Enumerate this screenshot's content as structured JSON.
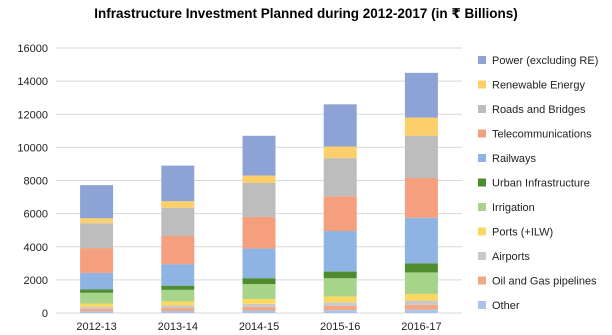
{
  "chart_data": {
    "type": "bar",
    "stacked": true,
    "title": "Infrastructure Investment Planned during 2012-2017 (in ₹ Billions)",
    "xlabel": "",
    "ylabel": "",
    "ylim": [
      0,
      16000
    ],
    "yticks": [
      0,
      2000,
      4000,
      6000,
      8000,
      10000,
      12000,
      14000,
      16000
    ],
    "grid": true,
    "legend_position": "right",
    "categories": [
      "2012-13",
      "2013-14",
      "2014-15",
      "2015-16",
      "2016-17"
    ],
    "series": [
      {
        "name": "Other",
        "color": "#a8c4e6",
        "values": [
          100,
          120,
          150,
          170,
          200
        ]
      },
      {
        "name": "Oil and Gas pipelines",
        "color": "#f2a785",
        "values": [
          150,
          180,
          220,
          260,
          300
        ]
      },
      {
        "name": "Airports",
        "color": "#c9c9c9",
        "values": [
          120,
          150,
          180,
          220,
          250
        ]
      },
      {
        "name": "Ports (+ILW)",
        "color": "#fdd860",
        "values": [
          200,
          250,
          300,
          350,
          400
        ]
      },
      {
        "name": "Irrigation",
        "color": "#a6d48a",
        "values": [
          650,
          700,
          900,
          1100,
          1300
        ]
      },
      {
        "name": "Urban Infrastructure",
        "color": "#4f8c2f",
        "values": [
          200,
          250,
          350,
          400,
          550
        ]
      },
      {
        "name": "Railways",
        "color": "#8fb4e3",
        "values": [
          1000,
          1300,
          1800,
          2450,
          2750
        ]
      },
      {
        "name": "Telecommunications",
        "color": "#f4a07e",
        "values": [
          1500,
          1700,
          1900,
          2100,
          2400
        ]
      },
      {
        "name": "Roads and Bridges",
        "color": "#bdbdbd",
        "values": [
          1500,
          1700,
          2050,
          2300,
          2550
        ]
      },
      {
        "name": "Renewable Energy",
        "color": "#fccf6a",
        "values": [
          300,
          400,
          450,
          700,
          1100
        ]
      },
      {
        "name": "Power (excluding RE)",
        "color": "#8da3d6",
        "values": [
          2000,
          2150,
          2400,
          2550,
          2700
        ]
      }
    ]
  }
}
